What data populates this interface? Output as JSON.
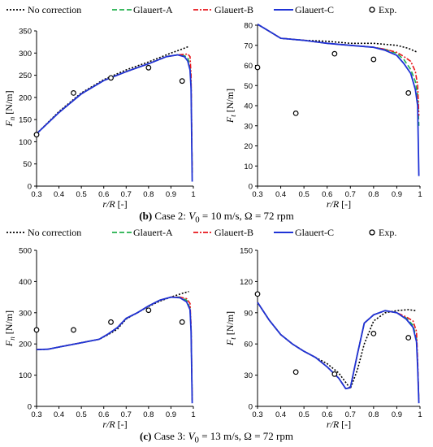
{
  "legend": [
    {
      "name": "No correction",
      "color": "#000000",
      "dash": "2,2",
      "kind": "line"
    },
    {
      "name": "Glauert-A",
      "color": "#22b14c",
      "dash": "6,3",
      "kind": "line"
    },
    {
      "name": "Glauert-B",
      "color": "#e8161b",
      "dash": "6,2,2,2",
      "kind": "line"
    },
    {
      "name": "Glauert-C",
      "color": "#1f33d6",
      "dash": "",
      "kind": "line"
    },
    {
      "name": "Exp.",
      "color": "#000000",
      "dash": "",
      "kind": "marker"
    }
  ],
  "captions": {
    "case2": {
      "tag": "(b)",
      "text": " Case 2: ",
      "v0": "V",
      "v0sub": "0",
      "rest": " = 10 m/s, Ω = 72 rpm"
    },
    "case3": {
      "tag": "(c)",
      "text": " Case 3: ",
      "v0": "V",
      "v0sub": "0",
      "rest": " = 13 m/s, Ω = 72 rpm"
    }
  },
  "chart_data": [
    {
      "type": "line",
      "id": "case2-fn",
      "xlabel": "r/R [-]",
      "ylabel_main": "F",
      "ylabel_sub": "n",
      "ylabel_unit": " [N/m]",
      "xlim": [
        0.3,
        1.0
      ],
      "ylim": [
        0,
        350
      ],
      "xticks": [
        "0.3",
        "0.4",
        "0.5",
        "0.6",
        "0.7",
        "0.8",
        "0.9",
        "1"
      ],
      "yticks": [
        "0",
        "50",
        "100",
        "150",
        "200",
        "250",
        "300",
        "350"
      ],
      "series": [
        {
          "name": "No correction",
          "x": [
            0.3,
            0.4,
            0.5,
            0.6,
            0.7,
            0.8,
            0.9,
            0.95,
            0.98
          ],
          "y": [
            118,
            168,
            210,
            240,
            262,
            280,
            300,
            309,
            315
          ]
        },
        {
          "name": "Glauert-A",
          "x": [
            0.3,
            0.4,
            0.5,
            0.6,
            0.7,
            0.8,
            0.88,
            0.93,
            0.96,
            0.975,
            0.985,
            0.99,
            0.995
          ],
          "y": [
            118,
            166,
            208,
            238,
            258,
            276,
            292,
            296,
            294,
            290,
            270,
            230,
            30
          ]
        },
        {
          "name": "Glauert-B",
          "x": [
            0.3,
            0.4,
            0.5,
            0.6,
            0.7,
            0.8,
            0.88,
            0.93,
            0.96,
            0.975,
            0.985,
            0.99,
            0.995
          ],
          "y": [
            118,
            166,
            208,
            238,
            258,
            276,
            292,
            296,
            297,
            298,
            292,
            250,
            30
          ]
        },
        {
          "name": "Glauert-C",
          "x": [
            0.3,
            0.4,
            0.5,
            0.6,
            0.7,
            0.8,
            0.88,
            0.93,
            0.96,
            0.975,
            0.985,
            0.99,
            0.995
          ],
          "y": [
            118,
            166,
            208,
            238,
            258,
            276,
            292,
            296,
            292,
            282,
            262,
            220,
            10
          ]
        }
      ],
      "exp": {
        "x": [
          0.3,
          0.465,
          0.632,
          0.8,
          0.95
        ],
        "y": [
          116,
          210,
          244,
          267,
          237
        ]
      }
    },
    {
      "type": "line",
      "id": "case2-ft",
      "xlabel": "r/R [-]",
      "ylabel_main": "F",
      "ylabel_sub": "t",
      "ylabel_unit": " [N/m]",
      "xlim": [
        0.3,
        1.0
      ],
      "ylim": [
        0,
        80
      ],
      "xticks": [
        "0.3",
        "0.4",
        "0.5",
        "0.6",
        "0.7",
        "0.8",
        "0.9",
        "1"
      ],
      "yticks": [
        "0",
        "10",
        "20",
        "30",
        "40",
        "50",
        "60",
        "70",
        "80"
      ],
      "series": [
        {
          "name": "No correction",
          "x": [
            0.3,
            0.35,
            0.4,
            0.5,
            0.6,
            0.7,
            0.8,
            0.9,
            0.95,
            0.99
          ],
          "y": [
            80.5,
            77,
            73.5,
            72.5,
            72,
            71,
            71,
            70,
            68.5,
            66.5
          ]
        },
        {
          "name": "Glauert-A",
          "x": [
            0.3,
            0.35,
            0.4,
            0.5,
            0.6,
            0.7,
            0.8,
            0.85,
            0.9,
            0.93,
            0.96,
            0.98,
            0.99,
            0.995
          ],
          "y": [
            80.5,
            77,
            73.5,
            72.5,
            71,
            70,
            69,
            68,
            66,
            63,
            58,
            52,
            45,
            30
          ]
        },
        {
          "name": "Glauert-B",
          "x": [
            0.3,
            0.35,
            0.4,
            0.5,
            0.6,
            0.7,
            0.8,
            0.85,
            0.9,
            0.93,
            0.96,
            0.98,
            0.99,
            0.995
          ],
          "y": [
            80.5,
            77,
            73.5,
            72.5,
            71,
            70,
            69,
            68,
            66.5,
            64.5,
            62,
            57,
            50,
            35
          ]
        },
        {
          "name": "Glauert-C",
          "x": [
            0.3,
            0.35,
            0.4,
            0.5,
            0.6,
            0.7,
            0.8,
            0.85,
            0.9,
            0.93,
            0.96,
            0.98,
            0.99,
            0.995
          ],
          "y": [
            80.5,
            77,
            73.5,
            72.5,
            71,
            70,
            69,
            67.5,
            65,
            61,
            56,
            48,
            40,
            5
          ]
        }
      ],
      "exp": {
        "x": [
          0.3,
          0.465,
          0.632,
          0.8,
          0.95
        ],
        "y": [
          59,
          36.2,
          65.8,
          63,
          46.3
        ]
      }
    },
    {
      "type": "line",
      "id": "case3-fn",
      "xlabel": "r/R [-]",
      "ylabel_main": "F",
      "ylabel_sub": "n",
      "ylabel_unit": " [N/m]",
      "xlim": [
        0.3,
        1.0
      ],
      "ylim": [
        0,
        500
      ],
      "xticks": [
        "0.3",
        "0.4",
        "0.5",
        "0.6",
        "0.7",
        "0.8",
        "0.9",
        "1"
      ],
      "yticks": [
        "0",
        "100",
        "200",
        "300",
        "400",
        "500"
      ],
      "series": [
        {
          "name": "No correction",
          "x": [
            0.3,
            0.35,
            0.4,
            0.5,
            0.58,
            0.62,
            0.66,
            0.7,
            0.75,
            0.8,
            0.85,
            0.9,
            0.95,
            0.98
          ],
          "y": [
            182,
            183,
            190,
            204,
            215,
            230,
            247,
            280,
            300,
            320,
            337,
            350,
            362,
            368
          ]
        },
        {
          "name": "Glauert-A",
          "x": [
            0.3,
            0.35,
            0.4,
            0.5,
            0.58,
            0.62,
            0.66,
            0.7,
            0.75,
            0.8,
            0.85,
            0.9,
            0.94,
            0.97,
            0.985,
            0.99,
            0.995
          ],
          "y": [
            182,
            183,
            190,
            204,
            215,
            232,
            252,
            282,
            300,
            322,
            340,
            350,
            350,
            340,
            315,
            250,
            20
          ]
        },
        {
          "name": "Glauert-B",
          "x": [
            0.3,
            0.35,
            0.4,
            0.5,
            0.58,
            0.62,
            0.66,
            0.7,
            0.75,
            0.8,
            0.85,
            0.9,
            0.94,
            0.97,
            0.985,
            0.99,
            0.995
          ],
          "y": [
            182,
            183,
            190,
            204,
            215,
            232,
            252,
            282,
            300,
            322,
            340,
            350,
            350,
            345,
            330,
            260,
            20
          ]
        },
        {
          "name": "Glauert-C",
          "x": [
            0.3,
            0.35,
            0.4,
            0.5,
            0.58,
            0.62,
            0.66,
            0.7,
            0.75,
            0.8,
            0.85,
            0.9,
            0.94,
            0.97,
            0.985,
            0.99,
            0.995
          ],
          "y": [
            182,
            183,
            190,
            204,
            215,
            232,
            252,
            282,
            300,
            322,
            340,
            350,
            348,
            335,
            310,
            240,
            10
          ]
        }
      ],
      "exp": {
        "x": [
          0.3,
          0.465,
          0.632,
          0.8,
          0.95
        ],
        "y": [
          245,
          245,
          270,
          308,
          270
        ]
      }
    },
    {
      "type": "line",
      "id": "case3-ft",
      "xlabel": "r/R [-]",
      "ylabel_main": "F",
      "ylabel_sub": "t",
      "ylabel_unit": " [N/m]",
      "xlim": [
        0.3,
        1.0
      ],
      "ylim": [
        0,
        150
      ],
      "xticks": [
        "0.3",
        "0.4",
        "0.5",
        "0.6",
        "0.7",
        "0.8",
        "0.9",
        "1"
      ],
      "yticks": [
        "0",
        "30",
        "60",
        "90",
        "120",
        "150"
      ],
      "series": [
        {
          "name": "No correction",
          "x": [
            0.3,
            0.35,
            0.4,
            0.45,
            0.5,
            0.55,
            0.6,
            0.65,
            0.7,
            0.73,
            0.76,
            0.8,
            0.85,
            0.9,
            0.95,
            0.98
          ],
          "y": [
            100,
            83,
            69,
            60,
            53,
            47,
            41,
            32,
            17,
            35,
            60,
            82,
            90,
            92,
            93,
            92
          ]
        },
        {
          "name": "Glauert-A",
          "x": [
            0.3,
            0.35,
            0.4,
            0.45,
            0.5,
            0.55,
            0.6,
            0.65,
            0.68,
            0.7,
            0.73,
            0.76,
            0.8,
            0.85,
            0.9,
            0.94,
            0.97,
            0.985,
            0.99,
            0.995
          ],
          "y": [
            100,
            83,
            69,
            60,
            53,
            47,
            38,
            27,
            17,
            18,
            50,
            80,
            88,
            92,
            90,
            85,
            78,
            65,
            40,
            5
          ]
        },
        {
          "name": "Glauert-B",
          "x": [
            0.3,
            0.35,
            0.4,
            0.45,
            0.5,
            0.55,
            0.6,
            0.65,
            0.68,
            0.7,
            0.73,
            0.76,
            0.8,
            0.85,
            0.9,
            0.94,
            0.97,
            0.985,
            0.99,
            0.995
          ],
          "y": [
            100,
            83,
            69,
            60,
            53,
            47,
            38,
            27,
            17,
            18,
            50,
            80,
            88,
            92,
            90,
            86,
            82,
            72,
            45,
            5
          ]
        },
        {
          "name": "Glauert-C",
          "x": [
            0.3,
            0.35,
            0.4,
            0.45,
            0.5,
            0.55,
            0.6,
            0.65,
            0.68,
            0.7,
            0.73,
            0.76,
            0.8,
            0.85,
            0.9,
            0.94,
            0.97,
            0.985,
            0.99,
            0.995
          ],
          "y": [
            100,
            83,
            69,
            60,
            53,
            47,
            38,
            27,
            17,
            18,
            50,
            80,
            88,
            92,
            90,
            84,
            76,
            62,
            38,
            3
          ]
        }
      ],
      "exp": {
        "x": [
          0.3,
          0.465,
          0.632,
          0.8,
          0.95
        ],
        "y": [
          108,
          33,
          31,
          70,
          66
        ]
      }
    }
  ]
}
